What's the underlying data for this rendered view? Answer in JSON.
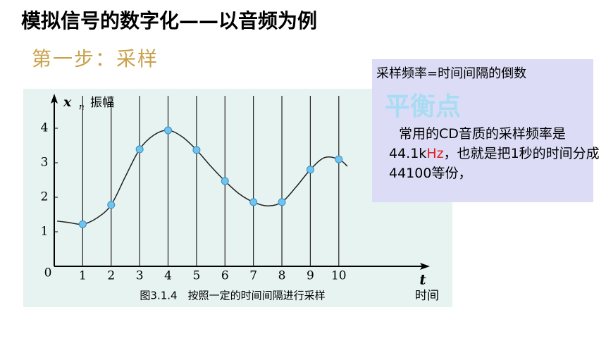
{
  "title": "模拟信号的数字化——以音频为例",
  "subtitle": "第一步：采样",
  "note": {
    "heading": "采样频率=时间间隔的倒数",
    "highlight": "平衡点",
    "body": [
      "常用的CD音质的采样频率是44.1k",
      "Hz",
      "，也就是把1秒的时间分成44100等份，"
    ]
  },
  "chart_data": {
    "type": "scatter",
    "caption": "图3.1.4　按照一定的时间间隔进行采样",
    "y_symbol": "x",
    "y_subscript": "n",
    "ylabel": "振幅",
    "x_symbol": "t",
    "xlabel": "时间",
    "x": [
      1,
      2,
      3,
      4,
      5,
      6,
      7,
      8,
      9,
      10
    ],
    "values": [
      1.22,
      1.78,
      3.39,
      3.94,
      3.37,
      2.47,
      1.86,
      1.86,
      2.8,
      3.1
    ],
    "color": "#6fc3ee",
    "curve": {
      "x": [
        0.1,
        0.5,
        1,
        1.5,
        2,
        2.5,
        3,
        3.5,
        4,
        4.5,
        5,
        5.5,
        6,
        6.5,
        7,
        7.5,
        8,
        8.5,
        9,
        9.5,
        10,
        10.3
      ],
      "values": [
        1.31,
        1.27,
        1.22,
        1.4,
        1.78,
        2.6,
        3.39,
        3.8,
        3.94,
        3.75,
        3.37,
        2.9,
        2.47,
        2.1,
        1.86,
        1.75,
        1.86,
        2.3,
        2.8,
        3.15,
        3.1,
        2.9
      ]
    },
    "xlim": [
      0,
      13.2
    ],
    "ylim": [
      0,
      5
    ],
    "xticks": [
      0,
      1,
      2,
      3,
      4,
      5,
      6,
      7,
      8,
      9,
      10
    ],
    "yticks": [
      1,
      2,
      3,
      4
    ]
  }
}
